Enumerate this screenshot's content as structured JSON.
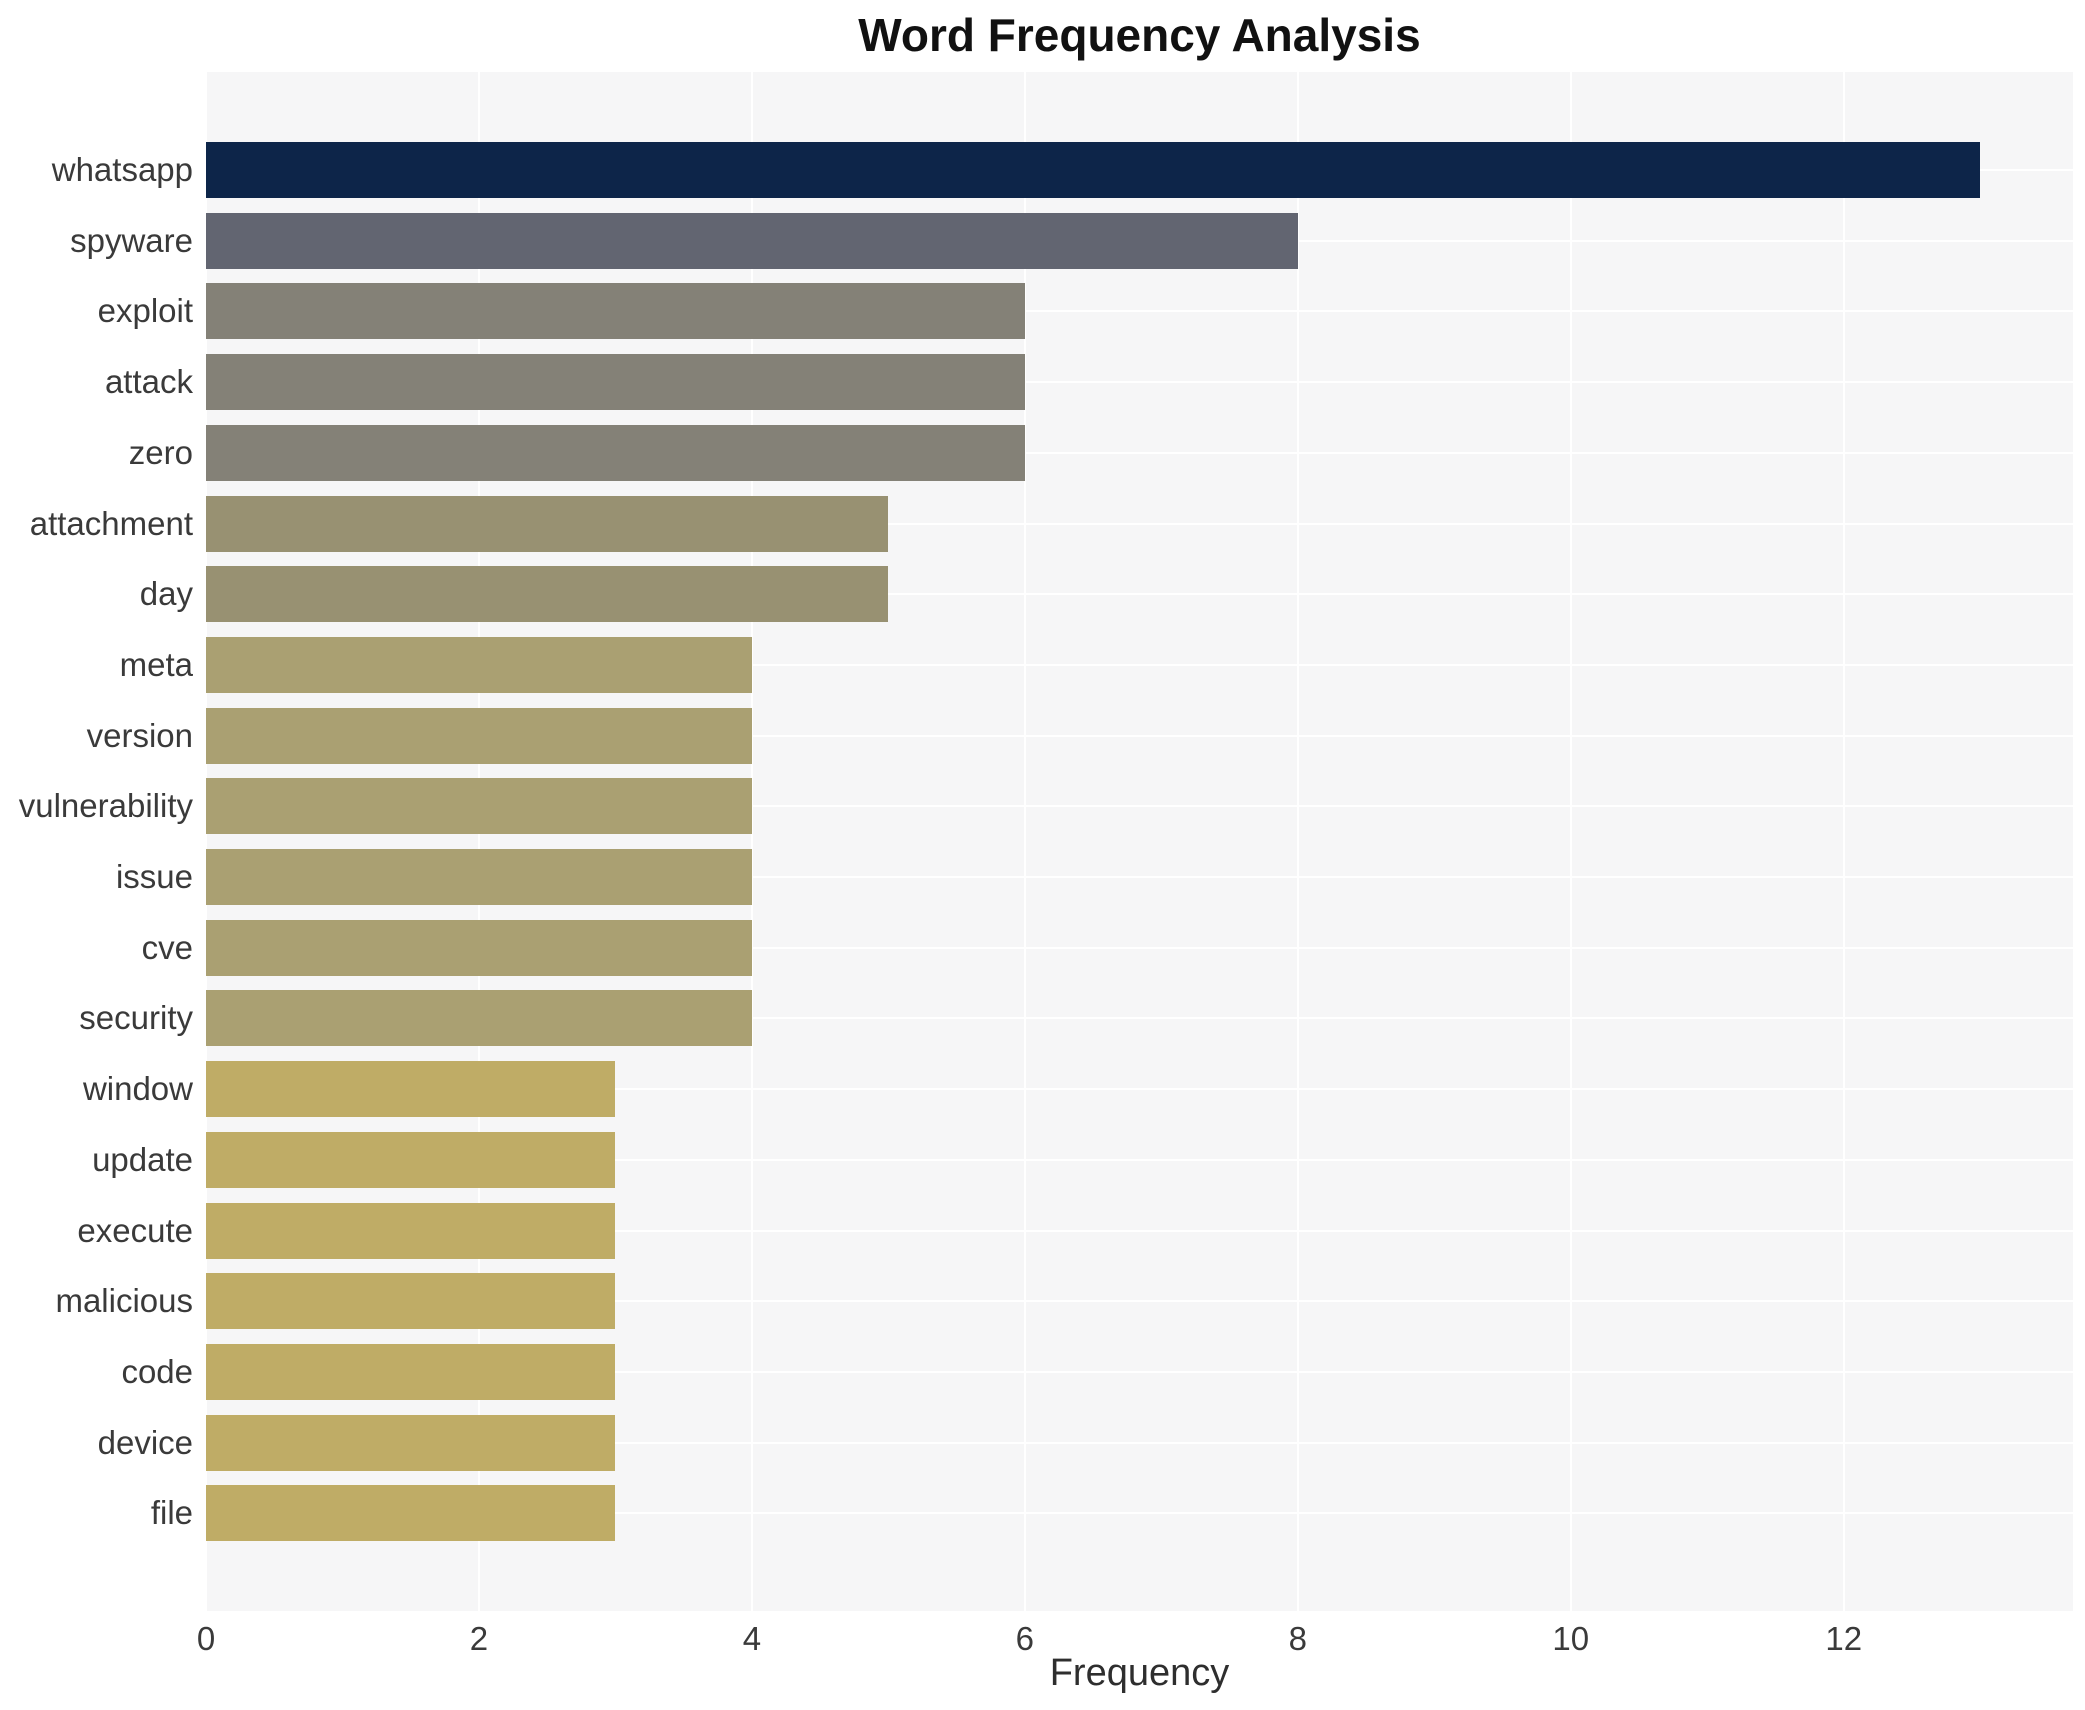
{
  "colors": {
    "figure_background": "#ffffff",
    "plot_background": "#f6f6f7",
    "grid": "#ffffff",
    "tick_text": "#3a3a3a",
    "axis_label_text": "#2e2e2e",
    "title_text": "#111111"
  },
  "chart_data": {
    "type": "bar",
    "orientation": "horizontal",
    "title": "Word Frequency Analysis",
    "xlabel": "Frequency",
    "ylabel": "",
    "categories": [
      "whatsapp",
      "spyware",
      "exploit",
      "attack",
      "zero",
      "attachment",
      "day",
      "meta",
      "version",
      "vulnerability",
      "issue",
      "cve",
      "security",
      "window",
      "update",
      "execute",
      "malicious",
      "code",
      "device",
      "file"
    ],
    "values": [
      13,
      8,
      6,
      6,
      6,
      5,
      5,
      4,
      4,
      4,
      4,
      4,
      4,
      3,
      3,
      3,
      3,
      3,
      3,
      3
    ],
    "bar_colors": [
      "#0d2549",
      "#626571",
      "#848177",
      "#848177",
      "#848177",
      "#989172",
      "#989172",
      "#aaa072",
      "#aaa072",
      "#aaa072",
      "#aaa072",
      "#aaa072",
      "#aaa072",
      "#bfac66",
      "#bfac66",
      "#bfac66",
      "#bfac66",
      "#bfac66",
      "#bfac66",
      "#bfac66"
    ],
    "xticks": [
      0,
      2,
      4,
      6,
      8,
      10,
      12
    ],
    "xlim": [
      0,
      13.68
    ],
    "grid": true,
    "gridlines": "both",
    "legend_position": "none",
    "value_labels_on_bars": false
  }
}
